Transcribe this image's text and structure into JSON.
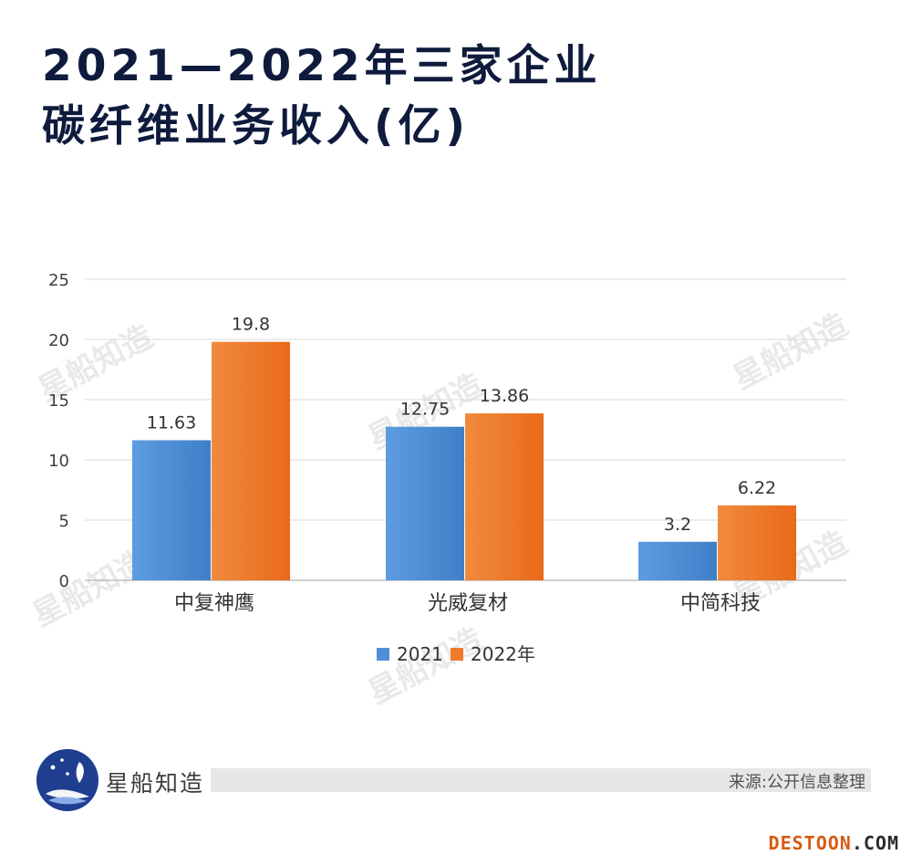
{
  "title": {
    "line1": "2021—2022年三家企业",
    "line2": "碳纤维业务收入(亿)"
  },
  "chart_data": {
    "type": "bar",
    "categories": [
      "中复神鹰",
      "光威复材",
      "中简科技"
    ],
    "series": [
      {
        "name": "2021",
        "values": [
          11.63,
          12.75,
          3.2
        ],
        "labels": [
          "11.63",
          "12.75",
          "3.2"
        ],
        "color": "#4f8fd6"
      },
      {
        "name": "2022年",
        "values": [
          19.8,
          13.86,
          6.22
        ],
        "labels": [
          "19.8",
          "13.86",
          "6.22"
        ],
        "color": "#ef7a2c"
      }
    ],
    "yticks": [
      "0",
      "5",
      "10",
      "15",
      "20",
      "25"
    ],
    "ylim": [
      0,
      25
    ],
    "grid": true,
    "legend_position": "bottom-center"
  },
  "watermark": {
    "text": "星船知造"
  },
  "footer": {
    "brand": "星船知造",
    "source": "来源:公开信息整理",
    "site_main": "DESTOON",
    "site_suffix": ".COM"
  },
  "colors": {
    "title": "#0f1b3d",
    "grid": "#d9d9d9",
    "axis": "#bfbfbf",
    "logo_blue": "#1f3e8f",
    "site_orange": "#d85a12"
  }
}
